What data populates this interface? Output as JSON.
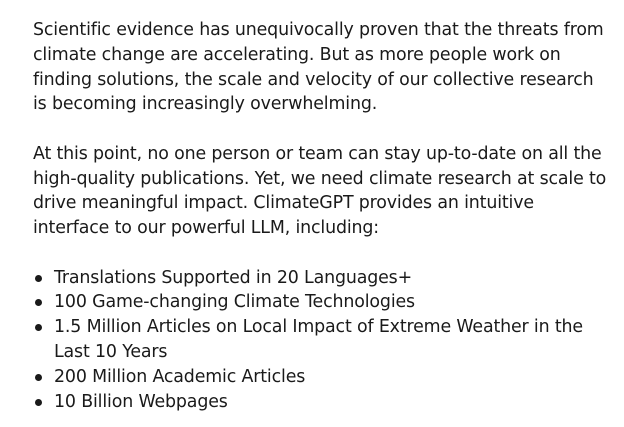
{
  "intro": {
    "paragraph_1": "Scientific evidence has unequivocally proven that the threats from climate change are accelerating. But as more people work on finding solutions, the scale and velocity of our collective research is becoming increasingly overwhelming.",
    "paragraph_2": "At this point, no one person or team can stay up-to-date on all the high-quality publications. Yet, we need climate research at scale to drive meaningful impact. ClimateGPT provides an intuitive interface to our powerful LLM, including:"
  },
  "features": [
    "Translations Supported in 20 Languages+",
    "100 Game-changing Climate Technologies",
    "1.5 Million Articles on Local Impact of Extreme Weather in the Last 10 Years",
    "200 Million Academic Articles",
    "10 Billion Webpages"
  ]
}
